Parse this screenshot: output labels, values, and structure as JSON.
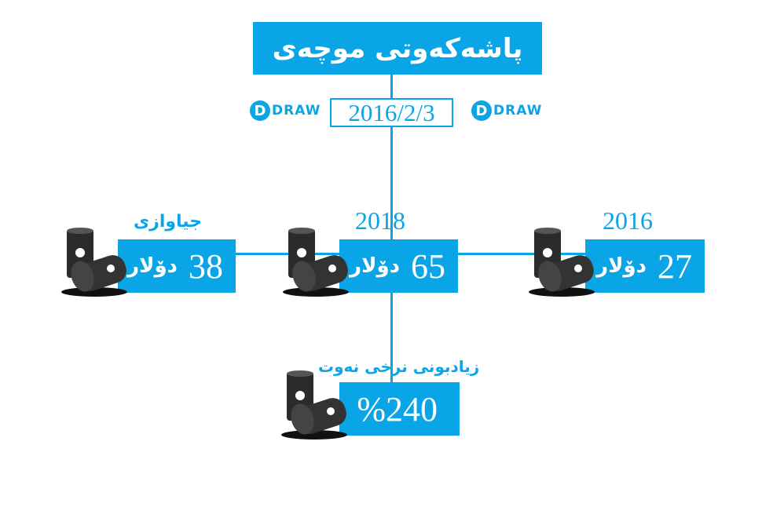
{
  "title": "پاشەکەوتی موچەی",
  "date": "2016/2/3",
  "logo_text": "DRAW",
  "unit": "دۆلار",
  "left": {
    "label": "جیاوازی",
    "value": "38"
  },
  "center": {
    "label": "2018",
    "value": "65"
  },
  "right": {
    "label": "2016",
    "value": "27"
  },
  "bottom": {
    "label": "زیادبونی نرخی نەوت",
    "value": "%240"
  },
  "colors": {
    "accent": "#0aa5e6"
  },
  "icons": [
    "oil-barrel-icon",
    "draw-logo"
  ]
}
